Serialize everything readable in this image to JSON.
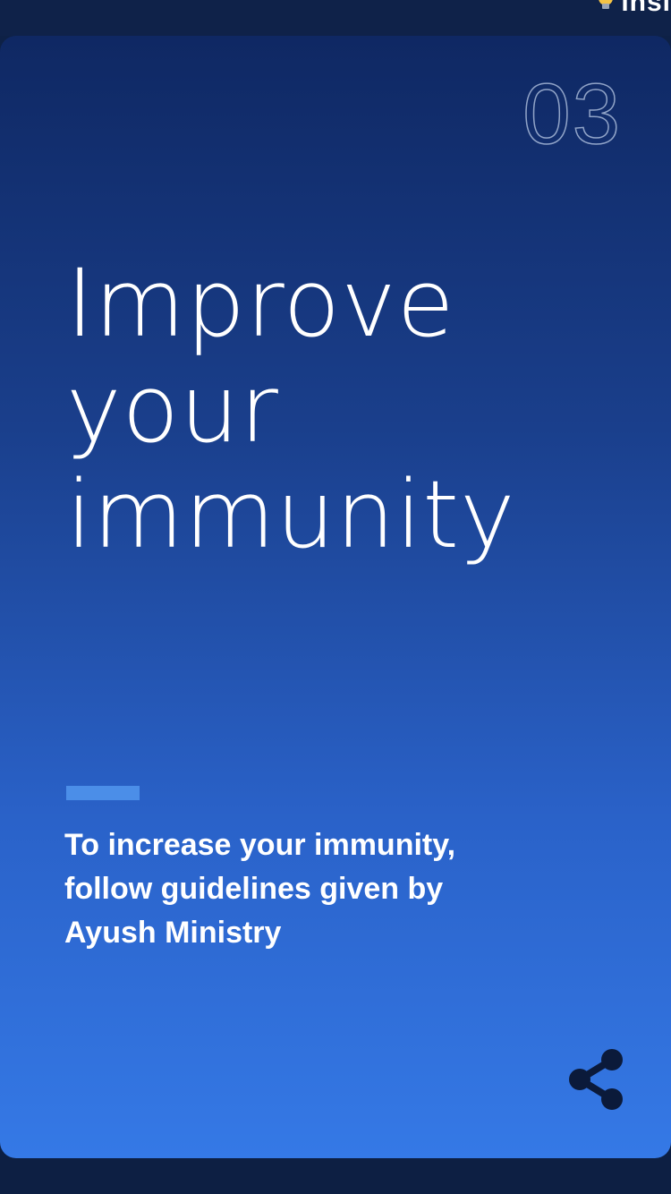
{
  "brand": {
    "icon": "lightbulb-icon",
    "partial_text": "insi"
  },
  "card": {
    "page_number": "03",
    "headline_lines": [
      "Improve",
      "your",
      "immunity"
    ],
    "description_lines": [
      "To increase your immunity,",
      "follow guidelines given by",
      "Ayush Ministry"
    ],
    "accent_color": "#4b8ee8",
    "gradient_top": "#0f2863",
    "gradient_bottom": "#3579e6"
  },
  "actions": {
    "share_icon": "share-icon"
  }
}
